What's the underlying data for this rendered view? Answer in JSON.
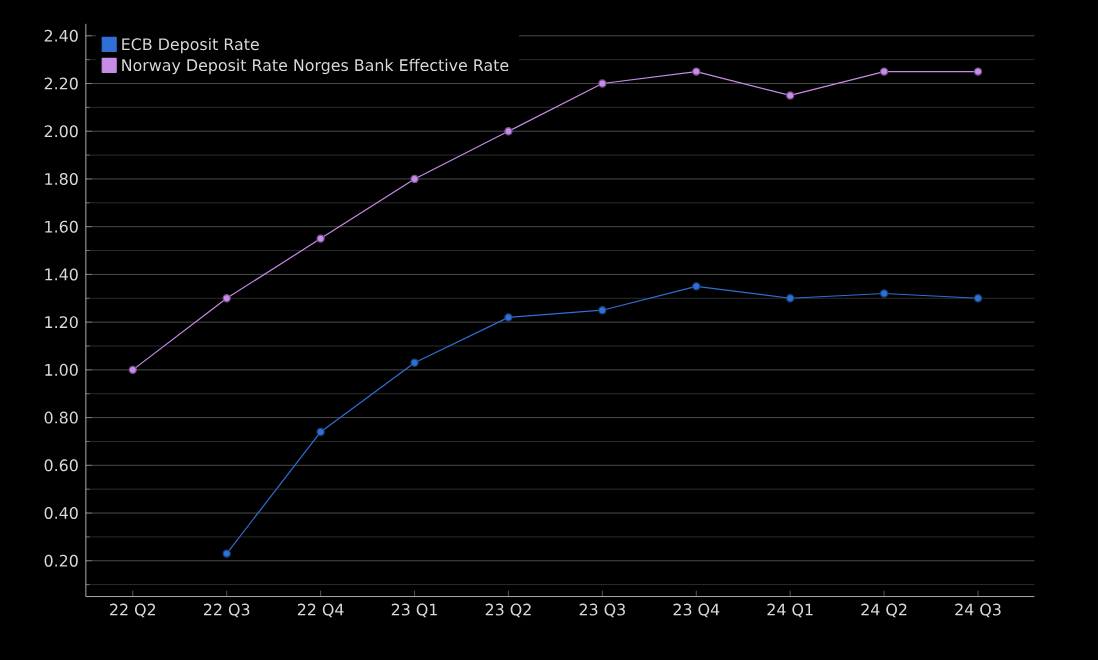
{
  "chart_data": {
    "type": "line",
    "categories": [
      "22 Q2",
      "22 Q3",
      "22 Q4",
      "23 Q1",
      "23 Q2",
      "23 Q3",
      "23 Q4",
      "24 Q1",
      "24 Q2",
      "24 Q3"
    ],
    "series": [
      {
        "name": "ECB Deposit Rate",
        "color": "#2f6fd6",
        "values": [
          null,
          0.23,
          0.74,
          1.03,
          1.22,
          1.25,
          1.35,
          1.3,
          1.32,
          1.3
        ]
      },
      {
        "name": "Norway Deposit Rate Norges Bank Effective Rate",
        "color": "#c78be8",
        "values": [
          1.0,
          1.3,
          1.55,
          1.8,
          2.0,
          2.2,
          2.25,
          2.15,
          2.25,
          2.25
        ]
      }
    ],
    "ylim": [
      0.05,
      2.45
    ],
    "yticks": [
      {
        "value": 0.2,
        "label": "0.20"
      },
      {
        "value": 0.4,
        "label": "0.40"
      },
      {
        "value": 0.6,
        "label": "0.60"
      },
      {
        "value": 0.8,
        "label": "0.80"
      },
      {
        "value": 1.0,
        "label": "1.00"
      },
      {
        "value": 1.2,
        "label": "1.20"
      },
      {
        "value": 1.4,
        "label": "1.40"
      },
      {
        "value": 1.6,
        "label": "1.60"
      },
      {
        "value": 1.8,
        "label": "1.80"
      },
      {
        "value": 2.0,
        "label": "2.00"
      },
      {
        "value": 2.2,
        "label": "2.20"
      },
      {
        "value": 2.4,
        "label": "2.40"
      }
    ],
    "grid": "y",
    "legend": "top left",
    "marker": "circle",
    "line_style": "solid"
  }
}
